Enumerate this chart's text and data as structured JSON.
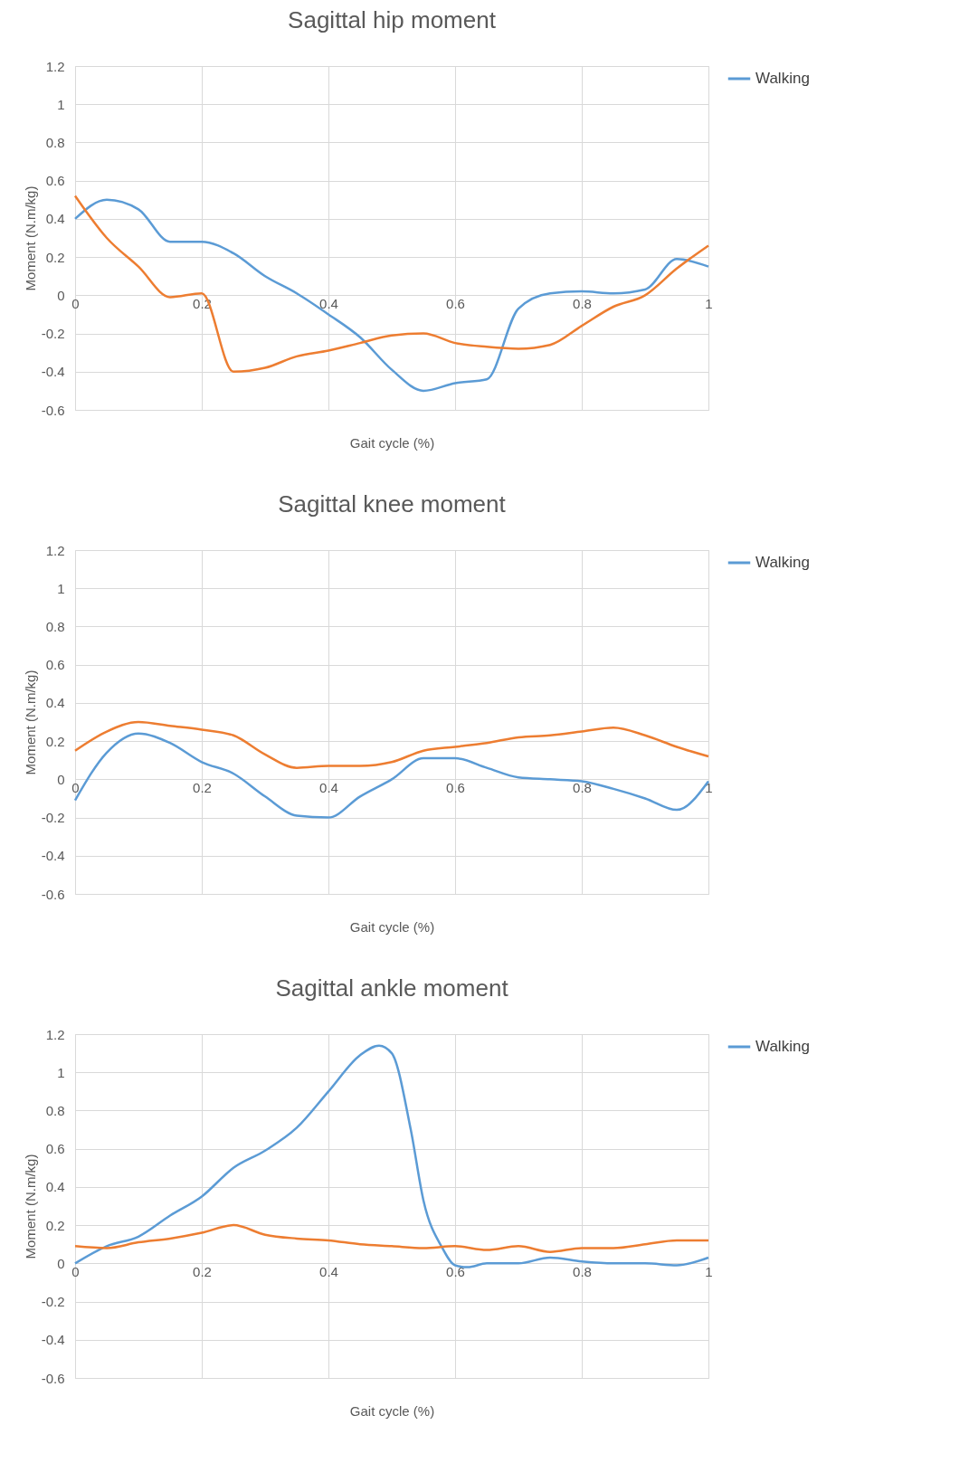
{
  "chart_data": [
    {
      "type": "line",
      "title": "Sagittal hip moment",
      "xlabel": "Gait cycle (%)",
      "ylabel": "Moment  (N.m/kg)",
      "xlim": [
        0,
        1
      ],
      "xticks": [
        0,
        0.2,
        0.4,
        0.6,
        0.8,
        1
      ],
      "ylim": [
        -0.6,
        1.2
      ],
      "yticks": [
        -0.6,
        -0.4,
        -0.2,
        0,
        0.2,
        0.4,
        0.6,
        0.8,
        1,
        1.2
      ],
      "grid": true,
      "legend": "right",
      "x": [
        0,
        0.05,
        0.1,
        0.15,
        0.2,
        0.25,
        0.3,
        0.35,
        0.4,
        0.45,
        0.5,
        0.55,
        0.6,
        0.65,
        0.7,
        0.75,
        0.8,
        0.85,
        0.9,
        0.95,
        1
      ],
      "series": [
        {
          "name": "Walking",
          "color": "#5b9bd5",
          "values": [
            0.4,
            0.5,
            0.45,
            0.28,
            0.28,
            0.22,
            0.1,
            0.01,
            -0.1,
            -0.22,
            -0.39,
            -0.5,
            -0.46,
            -0.44,
            -0.07,
            0.01,
            0.02,
            0.01,
            0.03,
            0.19,
            0.15
          ]
        },
        {
          "color": "#ed7d31",
          "values": [
            0.52,
            0.3,
            0.15,
            -0.01,
            0.01,
            -0.4,
            -0.38,
            -0.32,
            -0.29,
            -0.25,
            -0.21,
            -0.2,
            -0.25,
            -0.27,
            -0.28,
            -0.26,
            -0.16,
            -0.06,
            0.0,
            0.14,
            0.26
          ]
        }
      ]
    },
    {
      "type": "line",
      "title": "Sagittal knee moment",
      "xlabel": "Gait cycle (%)",
      "ylabel": "Moment  (N.m/kg)",
      "xlim": [
        0,
        1
      ],
      "xticks": [
        0,
        0.2,
        0.4,
        0.6,
        0.8,
        1
      ],
      "ylim": [
        -0.6,
        1.2
      ],
      "yticks": [
        -0.6,
        -0.4,
        -0.2,
        0,
        0.2,
        0.4,
        0.6,
        0.8,
        1,
        1.2
      ],
      "grid": true,
      "legend": "right",
      "x": [
        0,
        0.05,
        0.1,
        0.15,
        0.2,
        0.25,
        0.3,
        0.35,
        0.4,
        0.45,
        0.5,
        0.55,
        0.6,
        0.65,
        0.7,
        0.75,
        0.8,
        0.85,
        0.9,
        0.95,
        1
      ],
      "series": [
        {
          "name": "Walking",
          "color": "#5b9bd5",
          "values": [
            -0.11,
            0.14,
            0.24,
            0.19,
            0.09,
            0.03,
            -0.09,
            -0.19,
            -0.2,
            -0.09,
            0.0,
            0.11,
            0.11,
            0.06,
            0.01,
            0.0,
            -0.01,
            -0.05,
            -0.1,
            -0.16,
            -0.01
          ]
        },
        {
          "color": "#ed7d31",
          "values": [
            0.15,
            0.25,
            0.3,
            0.28,
            0.26,
            0.23,
            0.13,
            0.06,
            0.07,
            0.07,
            0.09,
            0.15,
            0.17,
            0.19,
            0.22,
            0.23,
            0.25,
            0.27,
            0.23,
            0.17,
            0.12
          ]
        }
      ]
    },
    {
      "type": "line",
      "title": "Sagittal ankle moment",
      "xlabel": "Gait cycle (%)",
      "ylabel": "Moment  (N.m/kg)",
      "xlim": [
        0,
        1
      ],
      "xticks": [
        0,
        0.2,
        0.4,
        0.6,
        0.8,
        1
      ],
      "ylim": [
        -0.6,
        1.2
      ],
      "yticks": [
        -0.6,
        -0.4,
        -0.2,
        0,
        0.2,
        0.4,
        0.6,
        0.8,
        1,
        1.2
      ],
      "grid": true,
      "legend": "right",
      "x": [
        0,
        0.05,
        0.1,
        0.15,
        0.2,
        0.25,
        0.3,
        0.35,
        0.4,
        0.45,
        0.5,
        0.55,
        0.6,
        0.65,
        0.7,
        0.75,
        0.8,
        0.85,
        0.9,
        0.95,
        1
      ],
      "series": [
        {
          "name": "Walking",
          "color": "#5b9bd5",
          "x": [
            0,
            0.05,
            0.1,
            0.15,
            0.2,
            0.25,
            0.3,
            0.35,
            0.4,
            0.45,
            0.48,
            0.5,
            0.53,
            0.55,
            0.58,
            0.6,
            0.62,
            0.65,
            0.7,
            0.75,
            0.8,
            0.85,
            0.9,
            0.95,
            1
          ],
          "values": [
            0.0,
            0.09,
            0.14,
            0.25,
            0.35,
            0.5,
            0.59,
            0.71,
            0.9,
            1.09,
            1.14,
            1.1,
            0.7,
            0.33,
            0.08,
            -0.01,
            -0.02,
            0.0,
            0.0,
            0.03,
            0.01,
            0.0,
            0.0,
            -0.01,
            0.03
          ]
        },
        {
          "color": "#ed7d31",
          "values": [
            0.09,
            0.08,
            0.11,
            0.13,
            0.16,
            0.2,
            0.15,
            0.13,
            0.12,
            0.1,
            0.09,
            0.08,
            0.09,
            0.07,
            0.09,
            0.06,
            0.08,
            0.08,
            0.1,
            0.12,
            0.12
          ]
        }
      ]
    }
  ]
}
